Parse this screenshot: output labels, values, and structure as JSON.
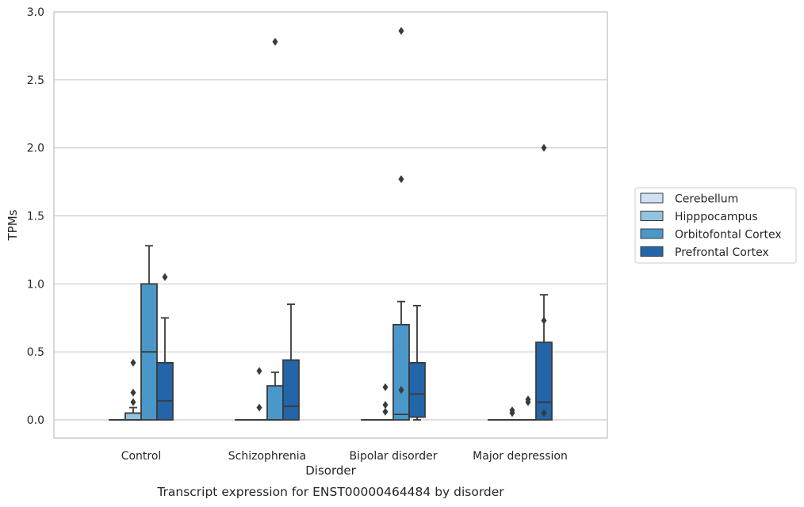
{
  "chart_data": {
    "type": "boxplot",
    "title": "Transcript expression for ENST00000464484 by disorder",
    "xlabel": "Disorder",
    "ylabel": "TPMs",
    "ylim": [
      -0.13,
      3.0
    ],
    "yticks": [
      0.0,
      0.5,
      1.0,
      1.5,
      2.0,
      2.5,
      3.0
    ],
    "ytick_labels": [
      "0.0",
      "0.5",
      "1.0",
      "1.5",
      "2.0",
      "2.5",
      "3.0"
    ],
    "grid": "horizontal",
    "legend_position": "right",
    "categories": [
      "Control",
      "Schizophrenia",
      "Bipolar disorder",
      "Major depression"
    ],
    "series": [
      {
        "name": "Cerebellum",
        "color": "#cfe1f2",
        "boxes": [
          {
            "whislo": 0,
            "q1": 0,
            "med": 0,
            "q3": 0,
            "whishi": 0,
            "fliers": []
          },
          {
            "whislo": 0,
            "q1": 0,
            "med": 0,
            "q3": 0,
            "whishi": 0,
            "fliers": []
          },
          {
            "whislo": 0,
            "q1": 0,
            "med": 0,
            "q3": 0,
            "whishi": 0,
            "fliers": []
          },
          {
            "whislo": 0,
            "q1": 0,
            "med": 0,
            "q3": 0,
            "whishi": 0,
            "fliers": []
          }
        ]
      },
      {
        "name": "Hipppocampus",
        "color": "#93c4de",
        "boxes": [
          {
            "whislo": 0,
            "q1": 0,
            "med": 0,
            "q3": 0.05,
            "whishi": 0.09,
            "fliers": [
              0.13,
              0.2,
              0.42
            ]
          },
          {
            "whislo": 0,
            "q1": 0,
            "med": 0,
            "q3": 0,
            "whishi": 0,
            "fliers": [
              0.09,
              0.36
            ]
          },
          {
            "whislo": 0,
            "q1": 0,
            "med": 0,
            "q3": 0,
            "whishi": 0,
            "fliers": [
              0.06,
              0.11,
              0.24
            ]
          },
          {
            "whislo": 0,
            "q1": 0,
            "med": 0,
            "q3": 0,
            "whishi": 0,
            "fliers": [
              0.05,
              0.07
            ]
          }
        ]
      },
      {
        "name": "Orbitofontal Cortex",
        "color": "#4a98c9",
        "boxes": [
          {
            "whislo": 0,
            "q1": 0,
            "med": 0.5,
            "q3": 1.0,
            "whishi": 1.28,
            "fliers": []
          },
          {
            "whislo": 0,
            "q1": 0,
            "med": 0,
            "q3": 0.25,
            "whishi": 0.35,
            "fliers": [
              2.78
            ]
          },
          {
            "whislo": 0,
            "q1": 0,
            "med": 0.04,
            "q3": 0.7,
            "whishi": 0.87,
            "fliers": [
              0.22,
              1.77,
              2.86
            ]
          },
          {
            "whislo": 0,
            "q1": 0,
            "med": 0,
            "q3": 0,
            "whishi": 0,
            "fliers": [
              0.13,
              0.15
            ]
          }
        ]
      },
      {
        "name": "Prefrontal Cortex",
        "color": "#2365a9",
        "boxes": [
          {
            "whislo": 0,
            "q1": 0,
            "med": 0.14,
            "q3": 0.42,
            "whishi": 0.75,
            "fliers": [
              1.05
            ]
          },
          {
            "whislo": 0,
            "q1": 0,
            "med": 0.1,
            "q3": 0.44,
            "whishi": 0.85,
            "fliers": []
          },
          {
            "whislo": 0,
            "q1": 0.02,
            "med": 0.19,
            "q3": 0.42,
            "whishi": 0.84,
            "fliers": []
          },
          {
            "whislo": 0,
            "q1": 0,
            "med": 0.13,
            "q3": 0.57,
            "whishi": 0.92,
            "fliers": [
              0.05,
              0.73,
              2.0
            ]
          }
        ]
      }
    ]
  }
}
